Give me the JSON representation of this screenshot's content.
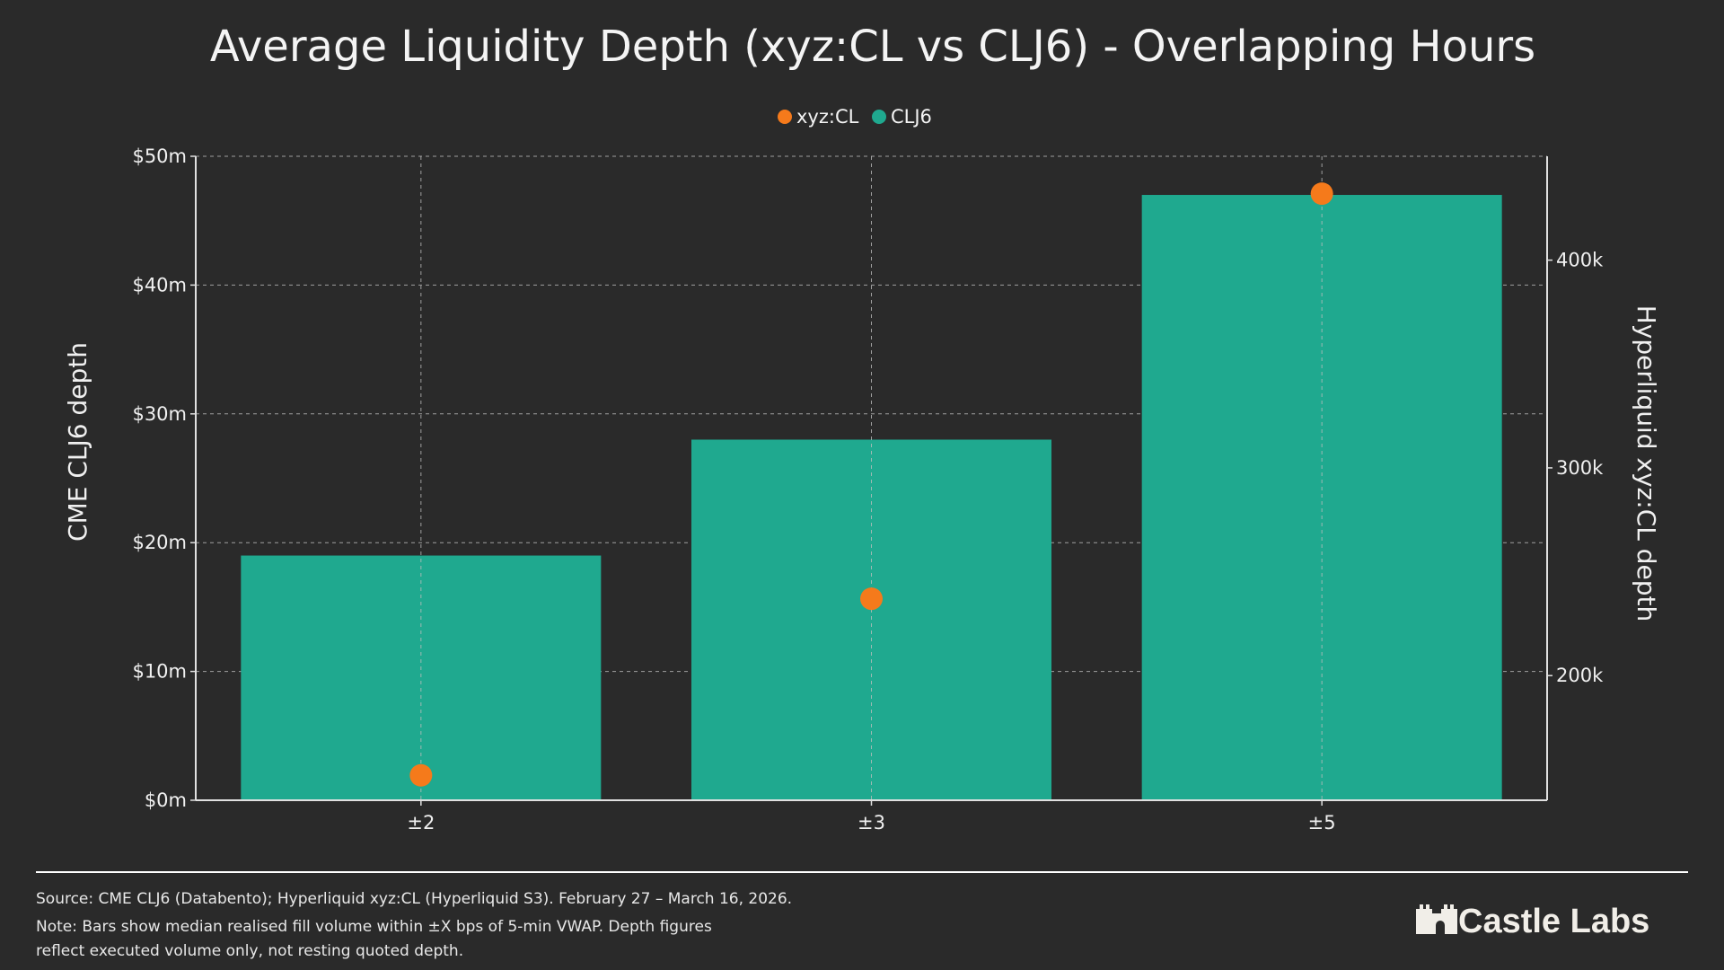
{
  "chart_data": {
    "type": "bar",
    "title": "Average Liquidity Depth (xyz:CL vs CLJ6) - Overlapping Hours",
    "categories": [
      "±2",
      "±3",
      "±5"
    ],
    "series": [
      {
        "name": "CLJ6",
        "type": "bar",
        "axis": "left",
        "color": "#1fa98f",
        "values": [
          19,
          28,
          47
        ],
        "unit": "$m"
      },
      {
        "name": "xyz:CL",
        "type": "scatter",
        "axis": "right",
        "color": "#f57a1b",
        "values": [
          152000,
          237000,
          432000
        ]
      }
    ],
    "legend": {
      "order": [
        "xyz:CL",
        "CLJ6"
      ],
      "placement": "top-center"
    },
    "y_left": {
      "label": "CME CLJ6 depth",
      "range": [
        0,
        50
      ],
      "ticks": [
        0,
        10,
        20,
        30,
        40,
        50
      ],
      "tick_labels": [
        "$0m",
        "$10m",
        "$20m",
        "$30m",
        "$40m",
        "$50m"
      ]
    },
    "y_right": {
      "label": "Hyperliquid xyz:CL depth",
      "range": [
        140000,
        450000
      ],
      "ticks": [
        200000,
        300000,
        400000
      ],
      "tick_labels": [
        "200k",
        "300k",
        "400k"
      ]
    },
    "grid": true,
    "background": "#2a2a2a"
  },
  "footer": {
    "source": "Source: CME CLJ6 (Databento); Hyperliquid xyz:CL (Hyperliquid S3). February 27 – March 16, 2026.",
    "note_line1": "Note: Bars show median realised fill volume within ±X bps of 5-min VWAP. Depth figures",
    "note_line2": "reflect executed volume only, not resting quoted depth.",
    "logo": "Castle Labs"
  }
}
